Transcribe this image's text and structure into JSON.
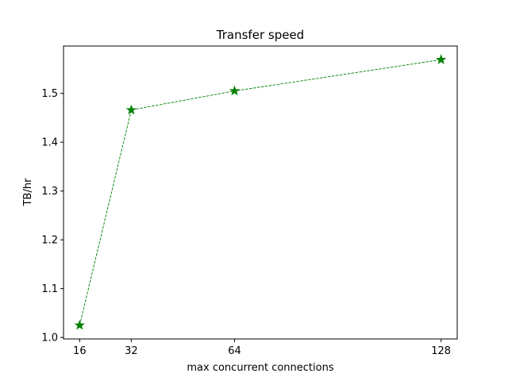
{
  "chart_data": {
    "type": "line",
    "title": "Transfer speed",
    "xlabel": "max concurrent connections",
    "ylabel": "TB/hr",
    "x": [
      16,
      32,
      64,
      128
    ],
    "series": [
      {
        "values": [
          1.025,
          1.466,
          1.505,
          1.569
        ],
        "color": "#008000",
        "line_style": "dashed",
        "marker": "star"
      }
    ],
    "xlim": [
      11,
      133
    ],
    "ylim": [
      0.997,
      1.597
    ],
    "xticks": [
      16,
      32,
      64,
      128
    ],
    "xtick_labels": [
      "16",
      "32",
      "64",
      "128"
    ],
    "yticks": [
      1.0,
      1.1,
      1.2,
      1.3,
      1.4,
      1.5
    ],
    "ytick_labels": [
      "1.0",
      "1.1",
      "1.2",
      "1.3",
      "1.4",
      "1.5"
    ],
    "grid": false,
    "legend": "none"
  }
}
